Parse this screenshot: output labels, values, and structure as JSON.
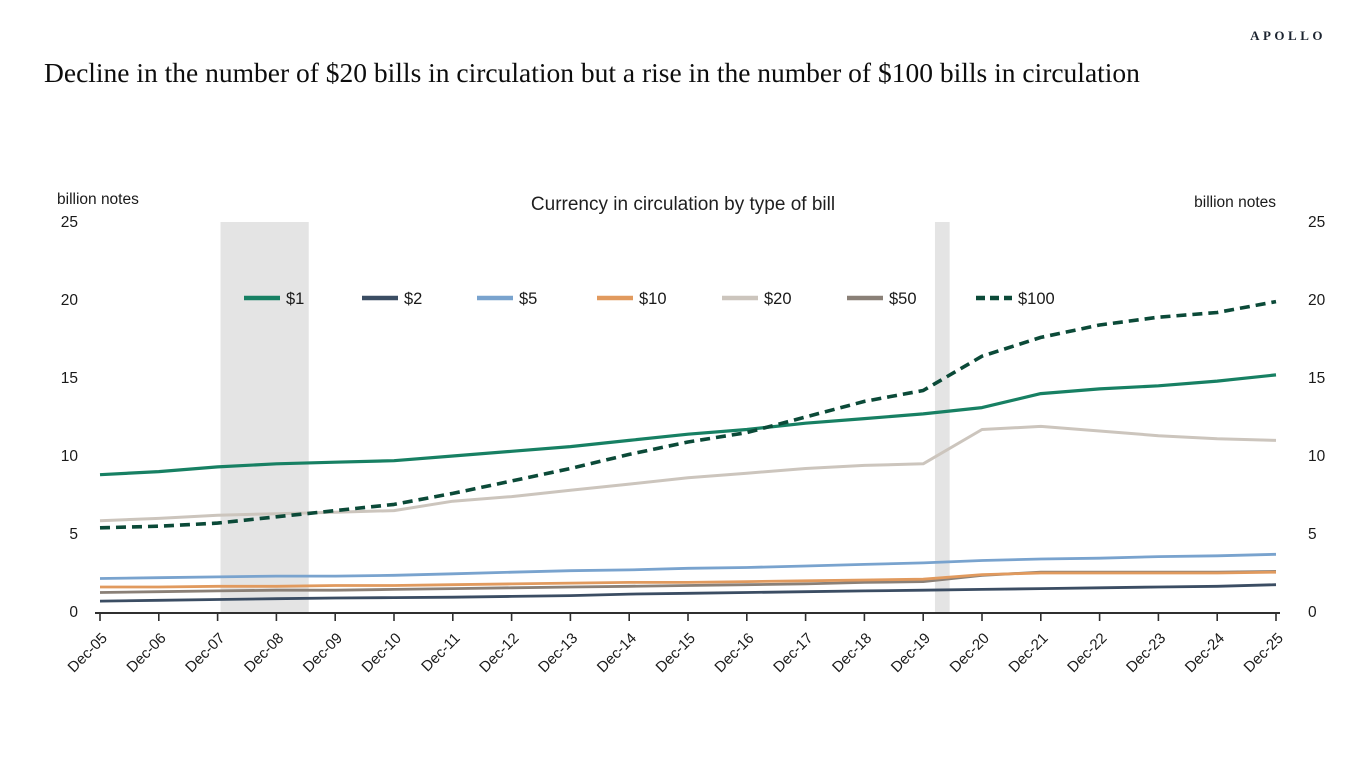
{
  "header": {
    "logo": "APOLLO",
    "title": "Decline in the number of $20 bills in circulation but a rise in the number of $100 bills in circulation"
  },
  "chart_data": {
    "type": "line",
    "title": "Currency in circulation by type of bill",
    "unit_left": "billion notes",
    "unit_right": "billion notes",
    "xlabel": "",
    "ylabel": "billion notes",
    "ylim": [
      0,
      25
    ],
    "yticks": [
      0,
      5,
      10,
      15,
      20,
      25
    ],
    "grid": false,
    "legend_position": "top-inside",
    "categories": [
      "Dec-05",
      "Dec-06",
      "Dec-07",
      "Dec-08",
      "Dec-09",
      "Dec-10",
      "Dec-11",
      "Dec-12",
      "Dec-13",
      "Dec-14",
      "Dec-15",
      "Dec-16",
      "Dec-17",
      "Dec-18",
      "Dec-19",
      "Dec-20",
      "Dec-21",
      "Dec-22",
      "Dec-23",
      "Dec-24",
      "Dec-25"
    ],
    "series": [
      {
        "name": "$1",
        "color": "#178063",
        "dashed": false,
        "width": 3.2,
        "values": [
          8.8,
          9.0,
          9.3,
          9.5,
          9.6,
          9.7,
          10.0,
          10.3,
          10.6,
          11.0,
          11.4,
          11.7,
          12.1,
          12.4,
          12.7,
          13.1,
          14.0,
          14.3,
          14.5,
          14.8,
          15.2
        ]
      },
      {
        "name": "$2",
        "color": "#3B4D63",
        "dashed": false,
        "width": 2.8,
        "values": [
          0.7,
          0.75,
          0.8,
          0.85,
          0.9,
          0.92,
          0.95,
          1.0,
          1.05,
          1.15,
          1.2,
          1.25,
          1.3,
          1.35,
          1.4,
          1.45,
          1.5,
          1.55,
          1.6,
          1.65,
          1.75
        ]
      },
      {
        "name": "$5",
        "color": "#79A3CE",
        "dashed": false,
        "width": 2.8,
        "values": [
          2.15,
          2.2,
          2.25,
          2.3,
          2.3,
          2.35,
          2.45,
          2.55,
          2.65,
          2.7,
          2.8,
          2.85,
          2.95,
          3.05,
          3.15,
          3.3,
          3.4,
          3.45,
          3.55,
          3.6,
          3.7
        ]
      },
      {
        "name": "$10",
        "color": "#E19A5E",
        "dashed": false,
        "width": 2.8,
        "values": [
          1.6,
          1.6,
          1.65,
          1.65,
          1.7,
          1.7,
          1.75,
          1.8,
          1.85,
          1.9,
          1.9,
          1.95,
          2.0,
          2.05,
          2.1,
          2.4,
          2.5,
          2.5,
          2.5,
          2.5,
          2.55
        ]
      },
      {
        "name": "$20",
        "color": "#CCC5BD",
        "dashed": false,
        "width": 3.0,
        "values": [
          5.85,
          6.0,
          6.2,
          6.3,
          6.4,
          6.5,
          7.1,
          7.4,
          7.8,
          8.2,
          8.6,
          8.9,
          9.2,
          9.4,
          9.5,
          11.7,
          11.9,
          11.6,
          11.3,
          11.1,
          11.0
        ]
      },
      {
        "name": "$50",
        "color": "#8A8077",
        "dashed": false,
        "width": 2.8,
        "values": [
          1.25,
          1.3,
          1.35,
          1.4,
          1.4,
          1.45,
          1.5,
          1.55,
          1.6,
          1.65,
          1.7,
          1.75,
          1.8,
          1.9,
          1.95,
          2.35,
          2.55,
          2.55,
          2.55,
          2.55,
          2.6
        ]
      },
      {
        "name": "$100",
        "color": "#0B4A38",
        "dashed": true,
        "width": 3.6,
        "values": [
          5.4,
          5.5,
          5.7,
          6.1,
          6.5,
          6.9,
          7.6,
          8.4,
          9.2,
          10.1,
          10.9,
          11.5,
          12.5,
          13.5,
          14.2,
          16.4,
          17.6,
          18.4,
          18.9,
          19.2,
          19.9
        ]
      }
    ],
    "recession_bands": [
      {
        "from_index": 2.05,
        "to_index": 3.55
      },
      {
        "from_index": 14.2,
        "to_index": 14.45
      }
    ],
    "band_color": "#E4E4E4",
    "axis_color": "#2F2F2F",
    "text_color": "#1a1a1a"
  }
}
